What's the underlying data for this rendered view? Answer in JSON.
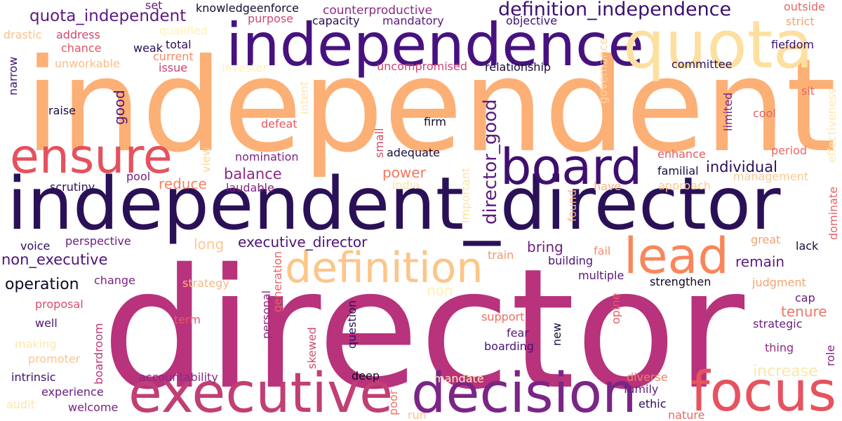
{
  "words": [
    {
      "text": "independent",
      "color": "#fcb076"
    },
    {
      "text": "director",
      "color": "#b8327c"
    },
    {
      "text": "independent_director",
      "color": "#2a1157"
    },
    {
      "text": "independence",
      "color": "#471280"
    },
    {
      "text": "quota",
      "color": "#fde0a0"
    },
    {
      "text": "executive",
      "color": "#c13f74"
    },
    {
      "text": "decision",
      "color": "#7b2586"
    },
    {
      "text": "focus",
      "color": "#e5535e"
    },
    {
      "text": "board",
      "color": "#3e0f6f"
    },
    {
      "text": "ensure",
      "color": "#e5515e"
    },
    {
      "text": "lead",
      "color": "#f8865b"
    },
    {
      "text": "definition",
      "color": "#fdc587"
    },
    {
      "text": "definition_independence",
      "color": "#3a1070"
    },
    {
      "text": "quota_independent",
      "color": "#5c1a80"
    },
    {
      "text": "director_good",
      "color": "#5d1a7e"
    },
    {
      "text": "executive_director",
      "color": "#4b1478"
    },
    {
      "text": "non_executive",
      "color": "#4d1478"
    },
    {
      "text": "operation",
      "color": "#0f0826"
    },
    {
      "text": "individual",
      "color": "#2c0f58"
    },
    {
      "text": "power",
      "color": "#f2775c"
    },
    {
      "text": "balance",
      "color": "#8c2984"
    },
    {
      "text": "reduce",
      "color": "#f48261"
    },
    {
      "text": "bring",
      "color": "#6e1f82"
    },
    {
      "text": "remain",
      "color": "#5f1b80"
    },
    {
      "text": "tenure",
      "color": "#f07567"
    },
    {
      "text": "increase",
      "color": "#fde6aa"
    },
    {
      "text": "long",
      "color": "#fdc790"
    },
    {
      "text": "knowledgeenforce",
      "color": "#150c30"
    },
    {
      "text": "counterproductive",
      "color": "#8c2a85"
    },
    {
      "text": "set",
      "color": "#6a1d81"
    },
    {
      "text": "purpose",
      "color": "#cd4b70"
    },
    {
      "text": "capacity",
      "color": "#2a0f57"
    },
    {
      "text": "mandatory",
      "color": "#5a197f"
    },
    {
      "text": "objective",
      "color": "#3d1170"
    },
    {
      "text": "outside",
      "color": "#e66764"
    },
    {
      "text": "strict",
      "color": "#f9a26e"
    },
    {
      "text": "drastic",
      "color": "#fdc088"
    },
    {
      "text": "address",
      "color": "#d5456c"
    },
    {
      "text": "qualified",
      "color": "#fef1b7"
    },
    {
      "text": "chance",
      "color": "#e15562"
    },
    {
      "text": "weak",
      "color": "#2a0f57"
    },
    {
      "text": "total",
      "color": "#2b0f59"
    },
    {
      "text": "current",
      "color": "#f38b65"
    },
    {
      "text": "fiefdom",
      "color": "#3a1070"
    },
    {
      "text": "narrow",
      "color": "#3e1172"
    },
    {
      "text": "unworkable",
      "color": "#fcbc80"
    },
    {
      "text": "issue",
      "color": "#c74271"
    },
    {
      "text": "investor",
      "color": "#fef0bd"
    },
    {
      "text": "uncompromised",
      "color": "#cf4570"
    },
    {
      "text": "relationship",
      "color": "#160b33"
    },
    {
      "text": "committee",
      "color": "#2c0f5a"
    },
    {
      "text": "effectiveness",
      "color": "#fde8b0"
    },
    {
      "text": "governance",
      "color": "#fdd59d"
    },
    {
      "text": "intent",
      "color": "#fce7b0"
    },
    {
      "text": "limited",
      "color": "#7a2386"
    },
    {
      "text": "sit",
      "color": "#ec6763"
    },
    {
      "text": "raise",
      "color": "#1a0c3c"
    },
    {
      "text": "good",
      "color": "#541678"
    },
    {
      "text": "firm",
      "color": "#110a2c"
    },
    {
      "text": "defeat",
      "color": "#e15b61"
    },
    {
      "text": "cool",
      "color": "#e26462"
    },
    {
      "text": "small",
      "color": "#d64e69"
    },
    {
      "text": "view",
      "color": "#fdd39a"
    },
    {
      "text": "adequate",
      "color": "#1a0c3d"
    },
    {
      "text": "nomination",
      "color": "#7e2384"
    },
    {
      "text": "enhance",
      "color": "#e45b62"
    },
    {
      "text": "period",
      "color": "#ec6763"
    },
    {
      "text": "important",
      "color": "#fde2a6"
    },
    {
      "text": "found",
      "color": "#fdb47f"
    },
    {
      "text": "pool",
      "color": "#71207f"
    },
    {
      "text": "familial",
      "color": "#1c0c40"
    },
    {
      "text": "management",
      "color": "#fdc991"
    },
    {
      "text": "dominate",
      "color": "#e96264"
    },
    {
      "text": "scrutiny",
      "color": "#2c0f57"
    },
    {
      "text": "laudable",
      "color": "#812584"
    },
    {
      "text": "india",
      "color": "#fde2a4"
    },
    {
      "text": "have",
      "color": "#fcb37d"
    },
    {
      "text": "approach",
      "color": "#fdcb91"
    },
    {
      "text": "perspective",
      "color": "#6b1e81"
    },
    {
      "text": "great",
      "color": "#f9a06f"
    },
    {
      "text": "voice",
      "color": "#2d1059"
    },
    {
      "text": "lack",
      "color": "#1a0c3b"
    },
    {
      "text": "train",
      "color": "#f6956a"
    },
    {
      "text": "fail",
      "color": "#f48e6a"
    },
    {
      "text": "building",
      "color": "#4b1378"
    },
    {
      "text": "generation",
      "color": "#e56266"
    },
    {
      "text": "personal",
      "color": "#8c2a85"
    },
    {
      "text": "non",
      "color": "#fef1b8"
    },
    {
      "text": "question",
      "color": "#2c0f59"
    },
    {
      "text": "change",
      "color": "#7e2384"
    },
    {
      "text": "multiple",
      "color": "#571779"
    },
    {
      "text": "strategy",
      "color": "#fcb67f"
    },
    {
      "text": "strengthen",
      "color": "#0f0826"
    },
    {
      "text": "judgment",
      "color": "#f9a26c"
    },
    {
      "text": "proposal",
      "color": "#dc4b6a"
    },
    {
      "text": "cap",
      "color": "#671d80"
    },
    {
      "text": "opine",
      "color": "#e55c65"
    },
    {
      "text": "well",
      "color": "#4d1478"
    },
    {
      "text": "term",
      "color": "#e35a65"
    },
    {
      "text": "support",
      "color": "#f06f5f"
    },
    {
      "text": "fear",
      "color": "#4f1679"
    },
    {
      "text": "new",
      "color": "#170b37"
    },
    {
      "text": "strategic",
      "color": "#6f1f82"
    },
    {
      "text": "making",
      "color": "#fde7ad"
    },
    {
      "text": "boardroom",
      "color": "#b9377a"
    },
    {
      "text": "skewed",
      "color": "#d04c6e"
    },
    {
      "text": "boarding",
      "color": "#461378"
    },
    {
      "text": "thing",
      "color": "#8d2a84"
    },
    {
      "text": "role",
      "color": "#81257f"
    },
    {
      "text": "promoter",
      "color": "#fdc48b"
    },
    {
      "text": "intrinsic",
      "color": "#3c1170"
    },
    {
      "text": "accountability",
      "color": "#8a2985"
    },
    {
      "text": "deep",
      "color": "#0f0826"
    },
    {
      "text": "mandate",
      "color": "#fef0b9"
    },
    {
      "text": "diverse",
      "color": "#f08263"
    },
    {
      "text": "experience",
      "color": "#671d80"
    },
    {
      "text": "family",
      "color": "#661d80"
    },
    {
      "text": "audit",
      "color": "#fde5ab"
    },
    {
      "text": "welcome",
      "color": "#78227f"
    },
    {
      "text": "poor",
      "color": "#f07065"
    },
    {
      "text": "run",
      "color": "#fcc088"
    },
    {
      "text": "ethic",
      "color": "#2e0f5a"
    },
    {
      "text": "nature",
      "color": "#e96a65"
    }
  ]
}
